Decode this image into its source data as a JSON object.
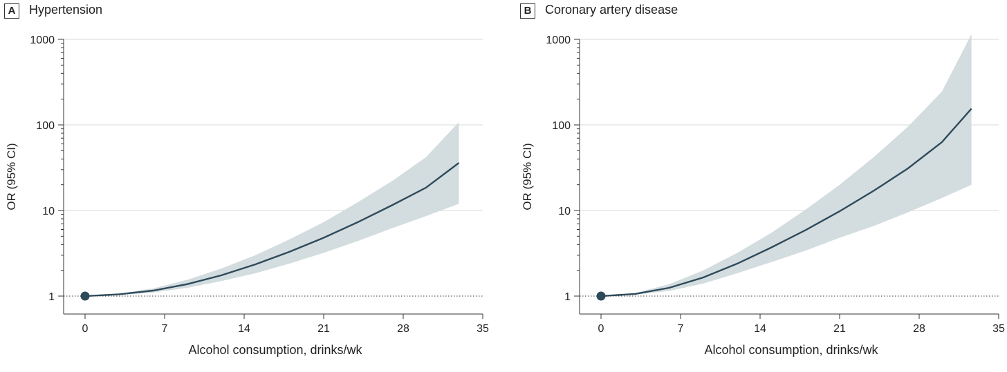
{
  "colors": {
    "line": "#2d4a5a",
    "band": "#d3dcdf",
    "grid": "#d8d8d8",
    "marker": "#2d4a5a"
  },
  "chart_data": [
    {
      "type": "line",
      "panel_letter": "A",
      "title": "Hypertension",
      "xlabel": "Alcohol consumption, drinks/wk",
      "ylabel": "OR (95% CI)",
      "x_ticks": [
        "0",
        "7",
        "14",
        "21",
        "28",
        "35"
      ],
      "y_ticks": [
        "1",
        "10",
        "100",
        "1000"
      ],
      "xlim": [
        -2,
        35
      ],
      "ylim": [
        0.6,
        1000
      ],
      "y_scale": "log",
      "grid": "horizontal",
      "reference_line": 1,
      "marker": {
        "x": 0,
        "y": 1
      },
      "series": [
        {
          "x": [
            0,
            3,
            6,
            9,
            12,
            15,
            18,
            21,
            24,
            27,
            30,
            32.9
          ],
          "y": [
            1.0,
            1.05,
            1.16,
            1.38,
            1.75,
            2.35,
            3.3,
            4.8,
            7.3,
            11.5,
            18.5,
            36.0
          ],
          "lower": [
            1.0,
            1.03,
            1.1,
            1.25,
            1.5,
            1.85,
            2.4,
            3.2,
            4.4,
            6.2,
            8.6,
            12.0
          ],
          "upper": [
            1.0,
            1.07,
            1.23,
            1.55,
            2.1,
            3.0,
            4.6,
            7.3,
            12.5,
            22.0,
            42.0,
            108.0
          ]
        }
      ]
    },
    {
      "type": "line",
      "panel_letter": "B",
      "title": "Coronary artery disease",
      "xlabel": "Alcohol consumption, drinks/wk",
      "ylabel": "OR (95% CI)",
      "x_ticks": [
        "0",
        "7",
        "14",
        "21",
        "28",
        "35"
      ],
      "y_ticks": [
        "1",
        "10",
        "100",
        "1000"
      ],
      "xlim": [
        -2,
        35
      ],
      "ylim": [
        0.6,
        1000
      ],
      "y_scale": "log",
      "grid": "horizontal",
      "reference_line": 1,
      "marker": {
        "x": 0,
        "y": 1
      },
      "series": [
        {
          "x": [
            0,
            3,
            6,
            9,
            12,
            15,
            18,
            21,
            24,
            27,
            30,
            32.6
          ],
          "y": [
            1.0,
            1.06,
            1.25,
            1.65,
            2.4,
            3.7,
            5.9,
            9.8,
            17.0,
            31.0,
            63.0,
            155.0
          ],
          "lower": [
            1.0,
            1.04,
            1.15,
            1.4,
            1.85,
            2.5,
            3.4,
            4.8,
            6.6,
            9.5,
            14.0,
            20.0
          ],
          "upper": [
            1.0,
            1.09,
            1.38,
            2.0,
            3.2,
            5.5,
            10.2,
            20.0,
            42.0,
            95.0,
            245.0,
            1150.0
          ]
        }
      ]
    }
  ]
}
